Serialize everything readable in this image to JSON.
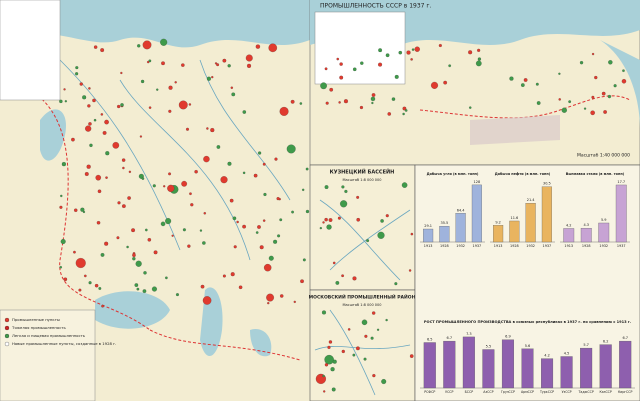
{
  "header": {
    "title": "ПРОМЫШЛЕННОСТЬ СССР в 1937 г."
  },
  "scale": "Масштаб 1:40 000 000",
  "insets": [
    {
      "title": "КУЗНЕЦКИЙ БАССЕЙН",
      "scale": "Масштаб 1:8 000 000"
    },
    {
      "title": "МОСКОВСКИЙ ПРОМЫШЛЕННЫЙ РАЙОН",
      "scale": "Масштаб 1:8 000 000"
    }
  ],
  "legend": [
    "Промышленные пункты",
    "Тяжелая промышленность",
    "Легкая и пищевая промышленность",
    "Новые промышленные пункты, созданные в 1928 г."
  ],
  "charts": [
    {
      "type": "bar",
      "title": "Добыча угля (в млн. тонн)",
      "categories": [
        "1913",
        "1928",
        "1932",
        "1937"
      ],
      "values": [
        29.1,
        35.5,
        64.4,
        128
      ],
      "color": "#9fb3dc",
      "ylim": [
        0,
        130
      ]
    },
    {
      "type": "bar",
      "title": "Добыча нефти (в млн. тонн)",
      "categories": [
        "1913",
        "1928",
        "1932",
        "1937"
      ],
      "values": [
        9.2,
        11.6,
        21.4,
        30.5
      ],
      "color": "#e9b45f",
      "ylim": [
        0,
        32
      ]
    },
    {
      "type": "bar",
      "title": "Выплавка стали (в млн. тонн)",
      "categories": [
        "1913",
        "1928",
        "1932",
        "1937"
      ],
      "values": [
        4.2,
        4.3,
        5.9,
        17.7
      ],
      "color": "#c7a3d4",
      "ylim": [
        0,
        18
      ]
    },
    {
      "type": "bar",
      "title": "РОСТ ПРОМЫШЛЕННОГО ПРОИЗВОДСТВА в союзных республиках в 1937 г. по сравнению с 1913 г.",
      "categories": [
        "РСФСР",
        "УССР",
        "БССР",
        "АзССР",
        "ГрузССР",
        "АрмССР",
        "ТуркССР",
        "УзССР",
        "ТаджССР",
        "КазССР",
        "КиргССР"
      ],
      "values": [
        6.5,
        6.7,
        7.3,
        5.5,
        6.9,
        5.6,
        4.2,
        4.5,
        5.7,
        6.2,
        6.7
      ],
      "color": "#8e5fae",
      "ylim": [
        0,
        8
      ]
    }
  ]
}
